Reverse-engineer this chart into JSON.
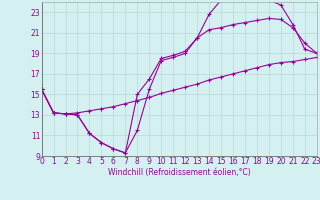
{
  "xlabel": "Windchill (Refroidissement éolien,°C)",
  "bg_color": "#d4f0f0",
  "line_color": "#990099",
  "grid_color": "#b8d8d8",
  "xmin": 0,
  "xmax": 23,
  "ymin": 9,
  "ymax": 24,
  "yticks": [
    9,
    11,
    13,
    15,
    17,
    19,
    21,
    23
  ],
  "xticks": [
    0,
    1,
    2,
    3,
    4,
    5,
    6,
    7,
    8,
    9,
    10,
    11,
    12,
    13,
    14,
    15,
    16,
    17,
    18,
    19,
    20,
    21,
    22,
    23
  ],
  "line1_x": [
    0,
    1,
    2,
    3,
    4,
    5,
    6,
    7,
    8,
    9,
    10,
    11,
    12,
    13,
    14,
    15,
    16,
    17,
    18,
    19,
    20,
    21,
    22,
    23
  ],
  "line1_y": [
    15.5,
    13.2,
    13.1,
    13.0,
    11.2,
    10.3,
    9.7,
    9.3,
    11.5,
    15.5,
    18.3,
    18.6,
    19.0,
    20.5,
    22.8,
    24.2,
    24.3,
    24.4,
    24.3,
    24.2,
    23.7,
    21.8,
    19.4,
    19.0
  ],
  "line2_x": [
    0,
    1,
    2,
    3,
    4,
    5,
    6,
    7,
    8,
    9,
    10,
    11,
    12,
    13,
    14,
    15,
    16,
    17,
    18,
    19,
    20,
    21,
    22,
    23
  ],
  "line2_y": [
    15.5,
    13.2,
    13.1,
    13.0,
    11.2,
    10.3,
    9.7,
    9.3,
    15.0,
    16.5,
    18.5,
    18.8,
    19.2,
    20.5,
    21.3,
    21.5,
    21.8,
    22.0,
    22.2,
    22.4,
    22.3,
    21.5,
    20.0,
    19.0
  ],
  "line3_x": [
    0,
    1,
    2,
    3,
    4,
    5,
    6,
    7,
    8,
    9,
    10,
    11,
    12,
    13,
    14,
    15,
    16,
    17,
    18,
    19,
    20,
    21,
    22,
    23
  ],
  "line3_y": [
    15.5,
    13.2,
    13.1,
    13.2,
    13.4,
    13.6,
    13.8,
    14.1,
    14.4,
    14.7,
    15.1,
    15.4,
    15.7,
    16.0,
    16.4,
    16.7,
    17.0,
    17.3,
    17.6,
    17.9,
    18.1,
    18.2,
    18.4,
    18.6
  ]
}
